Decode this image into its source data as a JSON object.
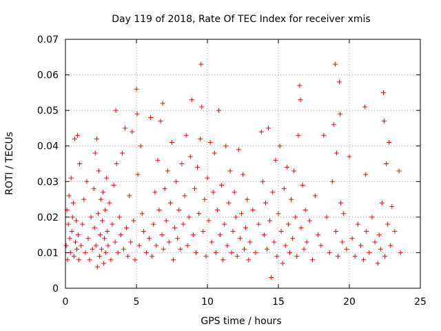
{
  "chart_data": {
    "type": "scatter",
    "title": "Day 119 of 2018, Rate Of TEC Index for receiver xmis",
    "xlabel": "GPS time / hours",
    "ylabel": "ROTI / TECUs",
    "xlim": [
      0,
      25
    ],
    "ylim": [
      0,
      0.07
    ],
    "x_ticks": [
      "0",
      "5",
      "10",
      "15",
      "20",
      "25"
    ],
    "y_ticks": [
      "0",
      "0.01",
      "0.02",
      "0.03",
      "0.04",
      "0.05",
      "0.06",
      "0.07"
    ],
    "grid": true,
    "marker": "+",
    "color": "#ff0000",
    "series": [
      {
        "points": [
          [
            0.05,
            0.012
          ],
          [
            0.1,
            0.022
          ],
          [
            0.15,
            0.008
          ],
          [
            0.2,
            0.018
          ],
          [
            0.25,
            0.026
          ],
          [
            0.3,
            0.014
          ],
          [
            0.35,
            0.01
          ],
          [
            0.4,
            0.031
          ],
          [
            0.45,
            0.016
          ],
          [
            0.5,
            0.02
          ],
          [
            0.55,
            0.024
          ],
          [
            0.6,
            0.009
          ],
          [
            0.65,
            0.042
          ],
          [
            0.7,
            0.013
          ],
          [
            0.75,
            0.019
          ],
          [
            0.8,
            0.011
          ],
          [
            0.85,
            0.043
          ],
          [
            0.9,
            0.015
          ],
          [
            0.95,
            0.008
          ],
          [
            1.0,
            0.035
          ],
          [
            1.1,
            0.012
          ],
          [
            1.2,
            0.018
          ],
          [
            1.3,
            0.025
          ],
          [
            1.4,
            0.01
          ],
          [
            1.5,
            0.03
          ],
          [
            1.6,
            0.014
          ],
          [
            1.7,
            0.008
          ],
          [
            1.8,
            0.02
          ],
          [
            1.9,
            0.011
          ],
          [
            2.0,
            0.028
          ],
          [
            2.05,
            0.017
          ],
          [
            2.1,
            0.038
          ],
          [
            2.15,
            0.012
          ],
          [
            2.2,
            0.042
          ],
          [
            2.25,
            0.006
          ],
          [
            2.3,
            0.021
          ],
          [
            2.35,
            0.033
          ],
          [
            2.4,
            0.009
          ],
          [
            2.45,
            0.015
          ],
          [
            2.5,
            0.025
          ],
          [
            2.55,
            0.011
          ],
          [
            2.6,
            0.019
          ],
          [
            2.65,
            0.027
          ],
          [
            2.7,
            0.007
          ],
          [
            2.75,
            0.014
          ],
          [
            2.8,
            0.022
          ],
          [
            2.85,
            0.01
          ],
          [
            2.9,
            0.031
          ],
          [
            2.95,
            0.016
          ],
          [
            3.0,
            0.012
          ],
          [
            3.1,
            0.024
          ],
          [
            3.2,
            0.008
          ],
          [
            3.3,
            0.018
          ],
          [
            3.4,
            0.029
          ],
          [
            3.5,
            0.013
          ],
          [
            3.55,
            0.05
          ],
          [
            3.6,
            0.035
          ],
          [
            3.7,
            0.01
          ],
          [
            3.8,
            0.02
          ],
          [
            3.9,
            0.015
          ],
          [
            4.0,
            0.038
          ],
          [
            4.1,
            0.011
          ],
          [
            4.2,
            0.045
          ],
          [
            4.3,
            0.017
          ],
          [
            4.4,
            0.009
          ],
          [
            4.5,
            0.026
          ],
          [
            4.6,
            0.013
          ],
          [
            4.7,
            0.044
          ],
          [
            4.8,
            0.019
          ],
          [
            4.9,
            0.008
          ],
          [
            5.0,
            0.056
          ],
          [
            5.05,
            0.049
          ],
          [
            5.1,
            0.032
          ],
          [
            5.2,
            0.012
          ],
          [
            5.3,
            0.04
          ],
          [
            5.4,
            0.021
          ],
          [
            5.5,
            0.016
          ],
          [
            5.7,
            0.01
          ],
          [
            5.9,
            0.014
          ],
          [
            6.0,
            0.048
          ],
          [
            6.1,
            0.009
          ],
          [
            6.2,
            0.018
          ],
          [
            6.3,
            0.027
          ],
          [
            6.4,
            0.012
          ],
          [
            6.5,
            0.036
          ],
          [
            6.6,
            0.022
          ],
          [
            6.7,
            0.047
          ],
          [
            6.8,
            0.015
          ],
          [
            6.85,
            0.052
          ],
          [
            6.9,
            0.011
          ],
          [
            7.0,
            0.028
          ],
          [
            7.1,
            0.019
          ],
          [
            7.2,
            0.033
          ],
          [
            7.3,
            0.013
          ],
          [
            7.4,
            0.024
          ],
          [
            7.5,
            0.041
          ],
          [
            7.6,
            0.008
          ],
          [
            7.7,
            0.017
          ],
          [
            7.8,
            0.03
          ],
          [
            7.9,
            0.014
          ],
          [
            8.0,
            0.022
          ],
          [
            8.1,
            0.011
          ],
          [
            8.2,
            0.035
          ],
          [
            8.3,
            0.018
          ],
          [
            8.4,
            0.026
          ],
          [
            8.5,
            0.043
          ],
          [
            8.6,
            0.012
          ],
          [
            8.7,
            0.02
          ],
          [
            8.8,
            0.037
          ],
          [
            8.9,
            0.053
          ],
          [
            9.0,
            0.015
          ],
          [
            9.1,
            0.028
          ],
          [
            9.2,
            0.01
          ],
          [
            9.3,
            0.034
          ],
          [
            9.4,
            0.021
          ],
          [
            9.5,
            0.042
          ],
          [
            9.55,
            0.063
          ],
          [
            9.6,
            0.051
          ],
          [
            9.7,
            0.016
          ],
          [
            9.8,
            0.025
          ],
          [
            9.9,
            0.009
          ],
          [
            10.0,
            0.031
          ],
          [
            10.1,
            0.019
          ],
          [
            10.2,
            0.041
          ],
          [
            10.3,
            0.013
          ],
          [
            10.4,
            0.027
          ],
          [
            10.5,
            0.038
          ],
          [
            10.6,
            0.01
          ],
          [
            10.7,
            0.022
          ],
          [
            10.8,
            0.05
          ],
          [
            10.9,
            0.015
          ],
          [
            11.0,
            0.029
          ],
          [
            11.1,
            0.008
          ],
          [
            11.2,
            0.018
          ],
          [
            11.3,
            0.04
          ],
          [
            11.4,
            0.012
          ],
          [
            11.5,
            0.024
          ],
          [
            11.6,
            0.033
          ],
          [
            11.7,
            0.01
          ],
          [
            11.8,
            0.016
          ],
          [
            11.9,
            0.027
          ],
          [
            12.0,
            0.02
          ],
          [
            12.1,
            0.009
          ],
          [
            12.2,
            0.039
          ],
          [
            12.3,
            0.014
          ],
          [
            12.4,
            0.021
          ],
          [
            12.5,
            0.032
          ],
          [
            12.6,
            0.011
          ],
          [
            12.7,
            0.017
          ],
          [
            12.8,
            0.025
          ],
          [
            12.9,
            0.008
          ],
          [
            13.0,
            0.013
          ],
          [
            13.2,
            0.022
          ],
          [
            13.4,
            0.01
          ],
          [
            13.6,
            0.018
          ],
          [
            13.8,
            0.044
          ],
          [
            13.9,
            0.03
          ],
          [
            14.0,
            0.015
          ],
          [
            14.1,
            0.024
          ],
          [
            14.2,
            0.011
          ],
          [
            14.3,
            0.045
          ],
          [
            14.4,
            0.019
          ],
          [
            14.5,
            0.003
          ],
          [
            14.6,
            0.027
          ],
          [
            14.7,
            0.013
          ],
          [
            14.8,
            0.036
          ],
          [
            14.9,
            0.009
          ],
          [
            15.0,
            0.021
          ],
          [
            15.1,
            0.04
          ],
          [
            15.2,
            0.016
          ],
          [
            15.3,
            0.007
          ],
          [
            15.4,
            0.028
          ],
          [
            15.5,
            0.012
          ],
          [
            15.6,
            0.034
          ],
          [
            15.7,
            0.018
          ],
          [
            15.8,
            0.01
          ],
          [
            15.9,
            0.025
          ],
          [
            16.0,
            0.014
          ],
          [
            16.1,
            0.033
          ],
          [
            16.2,
            0.02
          ],
          [
            16.3,
            0.009
          ],
          [
            16.4,
            0.043
          ],
          [
            16.5,
            0.057
          ],
          [
            16.55,
            0.053
          ],
          [
            16.6,
            0.017
          ],
          [
            16.7,
            0.029
          ],
          [
            16.8,
            0.011
          ],
          [
            16.9,
            0.022
          ],
          [
            17.0,
            0.013
          ],
          [
            17.2,
            0.019
          ],
          [
            17.4,
            0.008
          ],
          [
            17.6,
            0.026
          ],
          [
            17.8,
            0.015
          ],
          [
            18.0,
            0.012
          ],
          [
            18.2,
            0.043
          ],
          [
            18.4,
            0.02
          ],
          [
            18.6,
            0.01
          ],
          [
            18.8,
            0.03
          ],
          [
            18.9,
            0.046
          ],
          [
            19.0,
            0.063
          ],
          [
            19.05,
            0.016
          ],
          [
            19.1,
            0.038
          ],
          [
            19.2,
            0.009
          ],
          [
            19.3,
            0.058
          ],
          [
            19.35,
            0.049
          ],
          [
            19.4,
            0.024
          ],
          [
            19.5,
            0.013
          ],
          [
            19.6,
            0.021
          ],
          [
            19.8,
            0.011
          ],
          [
            20.0,
            0.037
          ],
          [
            20.2,
            0.014
          ],
          [
            20.4,
            0.009
          ],
          [
            20.6,
            0.018
          ],
          [
            20.8,
            0.012
          ],
          [
            21.0,
            0.008
          ],
          [
            21.1,
            0.051
          ],
          [
            21.15,
            0.032
          ],
          [
            21.2,
            0.016
          ],
          [
            21.4,
            0.01
          ],
          [
            21.6,
            0.02
          ],
          [
            21.8,
            0.013
          ],
          [
            22.0,
            0.007
          ],
          [
            22.1,
            0.015
          ],
          [
            22.2,
            0.011
          ],
          [
            22.3,
            0.024
          ],
          [
            22.4,
            0.055
          ],
          [
            22.45,
            0.047
          ],
          [
            22.5,
            0.009
          ],
          [
            22.6,
            0.035
          ],
          [
            22.7,
            0.018
          ],
          [
            22.8,
            0.041
          ],
          [
            22.9,
            0.012
          ],
          [
            23.0,
            0.023
          ],
          [
            23.2,
            0.016
          ],
          [
            23.5,
            0.033
          ],
          [
            23.6,
            0.01
          ]
        ]
      }
    ]
  }
}
